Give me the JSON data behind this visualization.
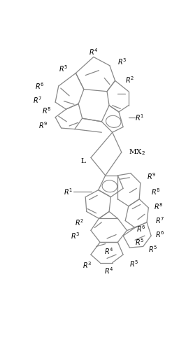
{
  "figure_width": 2.46,
  "figure_height": 4.99,
  "dpi": 100,
  "bg_color": "#ffffff",
  "line_color": "#888888",
  "text_color": "#000000",
  "line_width": 0.9,
  "font_size": 7.0
}
